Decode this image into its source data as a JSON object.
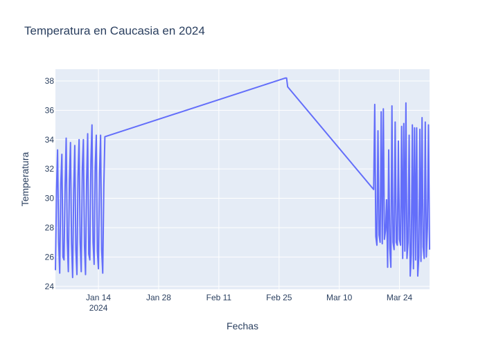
{
  "chart_data": {
    "type": "line",
    "title": "Temperatura en Caucasia en 2024",
    "xlabel": "Fechas",
    "ylabel": "Temperatura",
    "xlim": [
      "2024-01-04",
      "2024-03-31"
    ],
    "ylim": [
      23.8,
      38.8
    ],
    "grid": true,
    "legend": "none",
    "x_ticks": [
      {
        "date": "2024-01-14",
        "label": "Jan 14",
        "sublabel": "2024"
      },
      {
        "date": "2024-01-28",
        "label": "Jan 28",
        "sublabel": ""
      },
      {
        "date": "2024-02-11",
        "label": "Feb 11",
        "sublabel": ""
      },
      {
        "date": "2024-02-25",
        "label": "Feb 25",
        "sublabel": ""
      },
      {
        "date": "2024-03-10",
        "label": "Mar 10",
        "sublabel": ""
      },
      {
        "date": "2024-03-24",
        "label": "Mar 24",
        "sublabel": ""
      }
    ],
    "y_ticks": [
      24,
      26,
      28,
      30,
      32,
      34,
      36,
      38
    ],
    "colors": {
      "line": "#636efa",
      "plot_bg": "#e5ecf6",
      "grid": "#ffffff",
      "text": "#2a3f5f"
    },
    "series": [
      {
        "x": [
          "2024-01-04 00:00",
          "2024-01-04 06:00",
          "2024-01-04 12:00",
          "2024-01-04 18:00",
          "2024-01-05 00:00",
          "2024-01-05 06:00",
          "2024-01-05 12:00",
          "2024-01-05 18:00",
          "2024-01-06 00:00",
          "2024-01-06 06:00",
          "2024-01-06 12:00",
          "2024-01-06 18:00",
          "2024-01-07 00:00",
          "2024-01-07 06:00",
          "2024-01-07 12:00",
          "2024-01-07 18:00",
          "2024-01-08 00:00",
          "2024-01-08 06:00",
          "2024-01-08 12:00",
          "2024-01-08 18:00",
          "2024-01-09 00:00",
          "2024-01-09 06:00",
          "2024-01-09 12:00",
          "2024-01-09 18:00",
          "2024-01-10 00:00",
          "2024-01-10 06:00",
          "2024-01-10 12:00",
          "2024-01-10 18:00",
          "2024-01-11 00:00",
          "2024-01-11 06:00",
          "2024-01-11 12:00",
          "2024-01-11 18:00",
          "2024-01-12 00:00",
          "2024-01-12 06:00",
          "2024-01-12 12:00",
          "2024-01-12 18:00",
          "2024-01-13 00:00",
          "2024-01-13 06:00",
          "2024-01-13 12:00",
          "2024-01-13 18:00",
          "2024-01-14 00:00",
          "2024-01-14 06:00",
          "2024-01-14 12:00",
          "2024-01-14 18:00",
          "2024-01-15 00:00",
          "2024-01-15 06:00",
          "2024-01-15 12:00",
          "2024-02-26 12:00",
          "2024-02-26 18:00",
          "2024-02-27 00:00",
          "2024-03-18 00:00",
          "2024-03-18 06:00",
          "2024-03-18 12:00",
          "2024-03-18 18:00",
          "2024-03-19 00:00",
          "2024-03-19 06:00",
          "2024-03-19 12:00",
          "2024-03-19 18:00",
          "2024-03-20 00:00",
          "2024-03-20 06:00",
          "2024-03-20 12:00",
          "2024-03-20 18:00",
          "2024-03-21 00:00",
          "2024-03-21 06:00",
          "2024-03-21 12:00",
          "2024-03-21 18:00",
          "2024-03-22 00:00",
          "2024-03-22 06:00",
          "2024-03-22 12:00",
          "2024-03-22 18:00",
          "2024-03-23 00:00",
          "2024-03-23 06:00",
          "2024-03-23 12:00",
          "2024-03-23 18:00",
          "2024-03-24 00:00",
          "2024-03-24 06:00",
          "2024-03-24 12:00",
          "2024-03-24 18:00",
          "2024-03-25 00:00",
          "2024-03-25 06:00",
          "2024-03-25 12:00",
          "2024-03-25 18:00",
          "2024-03-26 00:00",
          "2024-03-26 06:00",
          "2024-03-26 12:00",
          "2024-03-26 18:00",
          "2024-03-27 00:00",
          "2024-03-27 06:00",
          "2024-03-27 12:00",
          "2024-03-27 18:00",
          "2024-03-28 00:00",
          "2024-03-28 06:00",
          "2024-03-28 12:00",
          "2024-03-28 18:00",
          "2024-03-29 00:00",
          "2024-03-29 06:00",
          "2024-03-29 12:00",
          "2024-03-29 18:00",
          "2024-03-30 00:00",
          "2024-03-30 06:00",
          "2024-03-30 12:00",
          "2024-03-30 18:00",
          "2024-03-31 00:00"
        ],
        "y": [
          25.1,
          30.5,
          33.3,
          27.0,
          24.9,
          31.0,
          33.0,
          26.0,
          25.8,
          30.8,
          34.1,
          27.2,
          25.0,
          31.2,
          33.8,
          26.9,
          24.6,
          30.6,
          33.6,
          26.5,
          24.8,
          31.5,
          34.0,
          27.0,
          25.0,
          32.0,
          34.0,
          26.8,
          24.8,
          31.2,
          34.4,
          26.2,
          25.8,
          32.5,
          35.0,
          27.0,
          25.5,
          32.1,
          34.3,
          26.4,
          25.2,
          31.7,
          34.3,
          26.5,
          24.9,
          30.8,
          34.2,
          38.2,
          38.2,
          37.6,
          30.6,
          36.4,
          27.4,
          26.8,
          34.6,
          27.5,
          27.0,
          35.9,
          26.9,
          36.1,
          27.2,
          27.8,
          29.9,
          25.3,
          33.3,
          26.6,
          25.3,
          36.3,
          27.0,
          26.5,
          35.2,
          27.0,
          26.8,
          33.9,
          27.2,
          26.8,
          34.9,
          25.9,
          35.1,
          26.4,
          36.5,
          25.9,
          27.0,
          34.3,
          24.7,
          26.2,
          35.0,
          25.2,
          34.8,
          25.8,
          34.8,
          24.7,
          26.0,
          34.7,
          25.7,
          35.5,
          26.7,
          25.9,
          35.2,
          26.0,
          28.0,
          35.0,
          26.5
        ]
      }
    ]
  }
}
